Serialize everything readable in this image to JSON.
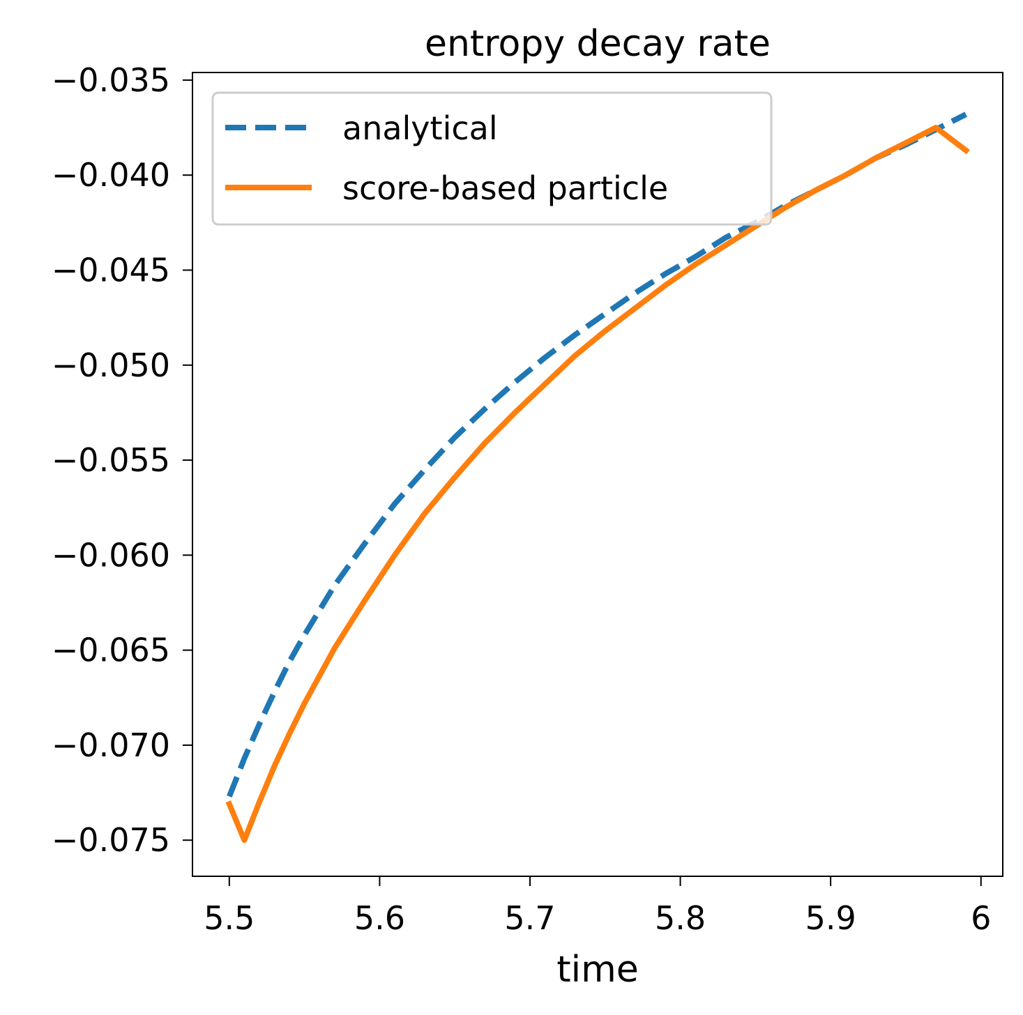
{
  "chart_data": {
    "type": "line",
    "title": "entropy decay rate",
    "xlabel": "time",
    "ylabel": "",
    "xlim": [
      5.4755,
      6.0145
    ],
    "ylim": [
      -0.0769,
      -0.0346
    ],
    "xticks": [
      5.5,
      5.6,
      5.7,
      5.8,
      5.9,
      6.0
    ],
    "xtick_labels": [
      "5.5",
      "5.6",
      "5.7",
      "5.8",
      "5.9",
      "6"
    ],
    "yticks": [
      -0.035,
      -0.04,
      -0.045,
      -0.05,
      -0.055,
      -0.06,
      -0.065,
      -0.07,
      -0.075
    ],
    "ytick_labels": [
      "−0.035",
      "−0.040",
      "−0.045",
      "−0.050",
      "−0.055",
      "−0.060",
      "−0.065",
      "−0.070",
      "−0.075"
    ],
    "grid": false,
    "legend": {
      "placement": "upper-left"
    },
    "series": [
      {
        "name": "analytical",
        "color": "#1f77b4",
        "style": "dashed",
        "x": [
          5.5,
          5.51,
          5.52,
          5.53,
          5.54,
          5.55,
          5.57,
          5.59,
          5.61,
          5.63,
          5.65,
          5.67,
          5.69,
          5.71,
          5.73,
          5.75,
          5.77,
          5.79,
          5.81,
          5.83,
          5.85,
          5.87,
          5.89,
          5.91,
          5.93,
          5.95,
          5.97,
          5.99
        ],
        "values": [
          -0.0727,
          -0.0707,
          -0.0689,
          -0.0672,
          -0.0656,
          -0.0642,
          -0.0616,
          -0.0594,
          -0.0573,
          -0.0555,
          -0.0538,
          -0.0523,
          -0.0509,
          -0.0496,
          -0.0484,
          -0.0473,
          -0.0462,
          -0.0452,
          -0.0443,
          -0.0433,
          -0.0425,
          -0.0416,
          -0.0408,
          -0.04,
          -0.0391,
          -0.0384,
          -0.0376,
          -0.0368
        ]
      },
      {
        "name": "score-based particle",
        "color": "#ff7f0e",
        "style": "solid",
        "x": [
          5.5,
          5.51,
          5.52,
          5.53,
          5.54,
          5.55,
          5.57,
          5.59,
          5.61,
          5.63,
          5.65,
          5.67,
          5.69,
          5.71,
          5.73,
          5.75,
          5.77,
          5.79,
          5.81,
          5.83,
          5.85,
          5.87,
          5.89,
          5.91,
          5.93,
          5.95,
          5.97,
          5.99
        ],
        "values": [
          -0.0731,
          -0.075,
          -0.073,
          -0.0711,
          -0.0694,
          -0.0678,
          -0.0649,
          -0.0624,
          -0.06,
          -0.0578,
          -0.0559,
          -0.0541,
          -0.0525,
          -0.051,
          -0.0495,
          -0.0482,
          -0.047,
          -0.0458,
          -0.0447,
          -0.0437,
          -0.0427,
          -0.0417,
          -0.0408,
          -0.04,
          -0.0391,
          -0.0383,
          -0.0375,
          -0.0387
        ]
      }
    ]
  }
}
